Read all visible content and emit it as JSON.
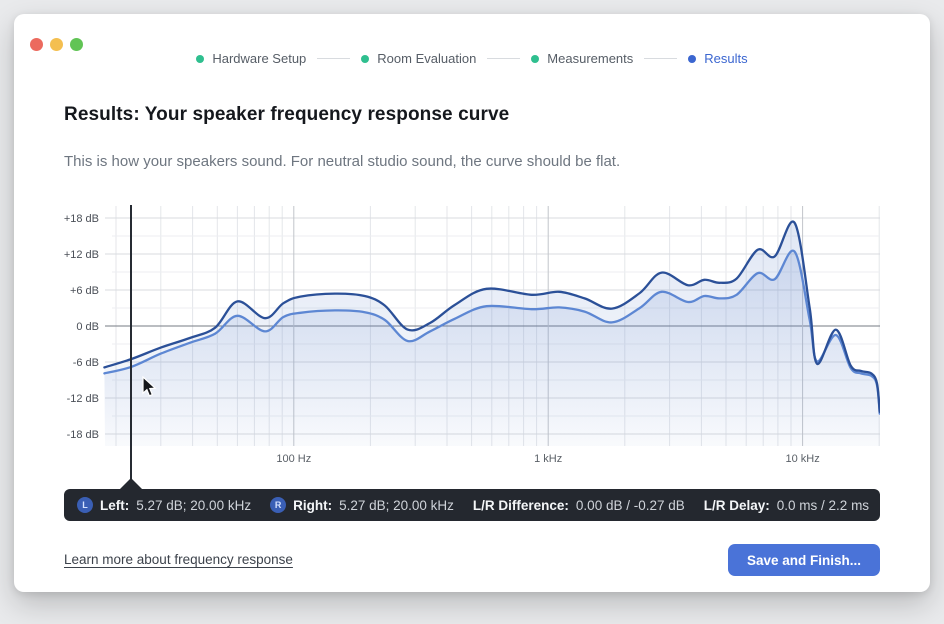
{
  "window": {
    "traffic_lights": [
      {
        "name": "close-button",
        "color": "#ec6a5e"
      },
      {
        "name": "minimize-button",
        "color": "#f4bf50"
      },
      {
        "name": "zoom-button",
        "color": "#61c455"
      }
    ]
  },
  "stepper": {
    "steps": [
      {
        "label": "Hardware Setup",
        "state": "done"
      },
      {
        "label": "Room Evaluation",
        "state": "done"
      },
      {
        "label": "Measurements",
        "state": "done"
      },
      {
        "label": "Results",
        "state": "active"
      }
    ],
    "done_color": "#2fbf8f",
    "active_color": "#3b66d0"
  },
  "page": {
    "title": "Results: Your speaker frequency response curve",
    "subtitle": "This is how your speakers sound. For neutral studio sound, the curve should be flat."
  },
  "chart_data": {
    "type": "line",
    "x_axis": {
      "scale": "log",
      "unit": "Hz",
      "min_hz": 18.1,
      "max_hz": 20150,
      "major_ticks": [
        {
          "hz": 100,
          "label": "100 Hz"
        },
        {
          "hz": 1000,
          "label": "1 kHz"
        },
        {
          "hz": 10000,
          "label": "10 kHz"
        }
      ],
      "minor_ticks_hz": [
        20,
        30,
        40,
        50,
        60,
        70,
        80,
        90,
        200,
        300,
        400,
        500,
        600,
        700,
        800,
        900,
        2000,
        3000,
        4000,
        5000,
        6000,
        7000,
        8000,
        9000,
        20000
      ]
    },
    "y_axis": {
      "unit": "dB",
      "min": -20,
      "max": 20,
      "major_ticks": [
        {
          "db": 18,
          "label": "+18 dB"
        },
        {
          "db": 12,
          "label": "+12 dB"
        },
        {
          "db": 6,
          "label": "+6 dB"
        },
        {
          "db": 0,
          "label": "0 dB"
        },
        {
          "db": -6,
          "label": "-6 dB"
        },
        {
          "db": -12,
          "label": "-12 dB"
        },
        {
          "db": -18,
          "label": "-18 dB"
        }
      ],
      "minor_ticks_db": [
        15,
        9,
        3,
        -3,
        -9,
        -15
      ]
    },
    "series": [
      {
        "name": "Left",
        "color": "#2b5098",
        "points": [
          [
            18,
            -6.9
          ],
          [
            23,
            -5.5
          ],
          [
            30,
            -3.6
          ],
          [
            39,
            -2.0
          ],
          [
            49,
            -0.3
          ],
          [
            60,
            4.1
          ],
          [
            77,
            1.3
          ],
          [
            91,
            3.8
          ],
          [
            106,
            4.9
          ],
          [
            145,
            5.4
          ],
          [
            190,
            5.0
          ],
          [
            228,
            3.4
          ],
          [
            280,
            -0.6
          ],
          [
            343,
            0.5
          ],
          [
            429,
            3.5
          ],
          [
            572,
            6.2
          ],
          [
            860,
            5.2
          ],
          [
            1105,
            5.7
          ],
          [
            1390,
            4.6
          ],
          [
            1780,
            2.9
          ],
          [
            2290,
            5.5
          ],
          [
            2790,
            8.9
          ],
          [
            3540,
            6.8
          ],
          [
            4110,
            7.7
          ],
          [
            4720,
            7.2
          ],
          [
            5500,
            7.9
          ],
          [
            6660,
            12.7
          ],
          [
            7770,
            11.6
          ],
          [
            9300,
            17.2
          ],
          [
            10660,
            3.0
          ],
          [
            11400,
            -6.3
          ],
          [
            13500,
            -0.6
          ],
          [
            15460,
            -6.6
          ],
          [
            16960,
            -7.5
          ],
          [
            18620,
            -7.9
          ],
          [
            19600,
            -9.5
          ],
          [
            20100,
            -14.3
          ]
        ]
      },
      {
        "name": "Right",
        "color": "#5d87d3",
        "points": [
          [
            18,
            -7.9
          ],
          [
            23,
            -6.8
          ],
          [
            30,
            -4.6
          ],
          [
            39,
            -2.8
          ],
          [
            49,
            -1.3
          ],
          [
            60,
            1.7
          ],
          [
            77,
            -0.9
          ],
          [
            91,
            1.5
          ],
          [
            106,
            2.2
          ],
          [
            145,
            2.6
          ],
          [
            190,
            2.3
          ],
          [
            228,
            1.0
          ],
          [
            280,
            -2.5
          ],
          [
            343,
            -0.9
          ],
          [
            429,
            1.2
          ],
          [
            572,
            3.3
          ],
          [
            860,
            2.8
          ],
          [
            1105,
            3.1
          ],
          [
            1390,
            2.4
          ],
          [
            1780,
            0.6
          ],
          [
            2290,
            3.0
          ],
          [
            2790,
            5.7
          ],
          [
            3540,
            4.0
          ],
          [
            4110,
            5.0
          ],
          [
            4720,
            4.6
          ],
          [
            5500,
            5.2
          ],
          [
            6660,
            8.8
          ],
          [
            7770,
            7.8
          ],
          [
            9300,
            12.4
          ],
          [
            10660,
            1.0
          ],
          [
            11400,
            -5.9
          ],
          [
            13500,
            -1.5
          ],
          [
            15460,
            -7.0
          ],
          [
            16960,
            -7.9
          ],
          [
            18620,
            -8.3
          ],
          [
            19600,
            -9.8
          ],
          [
            20100,
            -14.6
          ]
        ]
      }
    ],
    "cursor_hz": 23,
    "grid": {
      "major_color": "#d9dbdf",
      "minor_color": "#eceef1",
      "v_major_color": "#c2c5ca",
      "v_minor_color": "#e4e6ea",
      "zero_color": "#767b83"
    },
    "fill_color": "#6386ca",
    "legend_position": "none"
  },
  "status_bar": {
    "items": [
      {
        "badge": "L",
        "label": "Left:",
        "value": "5.27 dB; 20.00 kHz"
      },
      {
        "badge": "R",
        "label": "Right:",
        "value": "5.27 dB; 20.00 kHz"
      },
      {
        "badge": null,
        "label": "L/R Difference:",
        "value": "0.00 dB / -0.27 dB"
      },
      {
        "badge": null,
        "label": "L/R Delay:",
        "value": "0.0 ms / 2.2 ms"
      }
    ]
  },
  "footer": {
    "link_label": "Learn more about frequency response",
    "button_label": "Save and Finish..."
  }
}
